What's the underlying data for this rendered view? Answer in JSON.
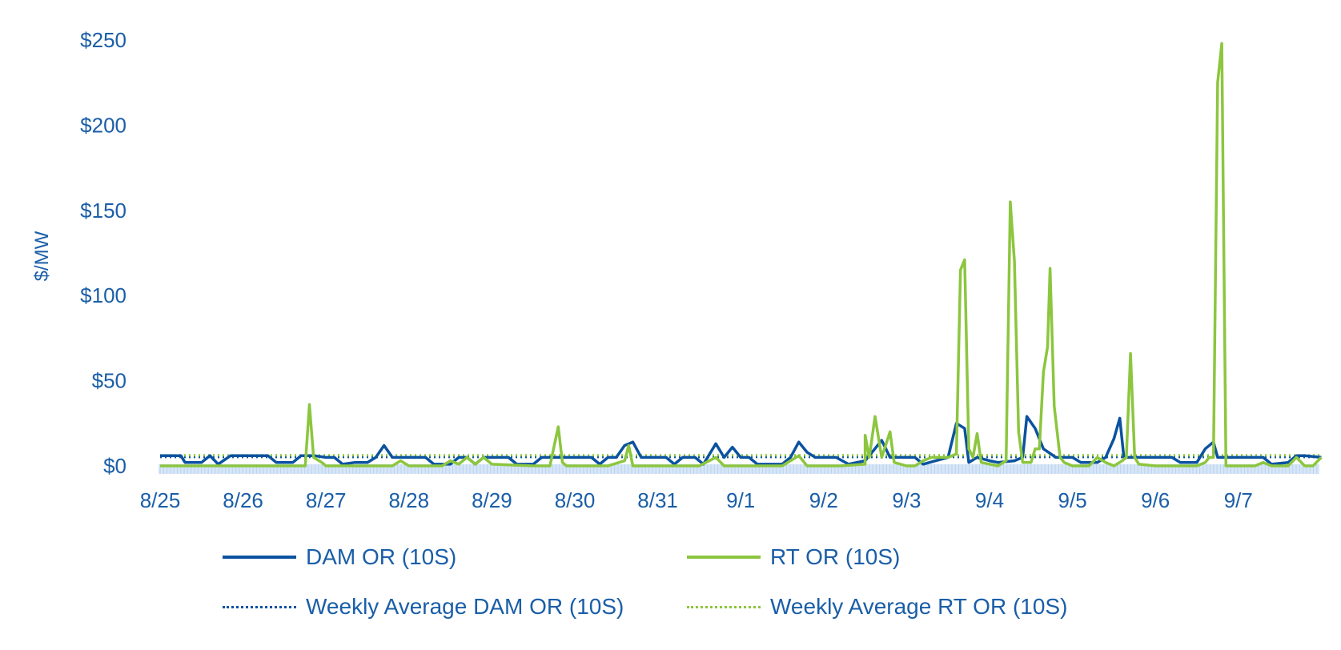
{
  "chart_data": {
    "type": "line",
    "ylabel": "$/MW",
    "ylim": [
      0,
      250
    ],
    "yticks": [
      "$0",
      "$50",
      "$100",
      "$150",
      "$200",
      "$250"
    ],
    "ytick_values": [
      0,
      50,
      100,
      150,
      200,
      250
    ],
    "xticks": [
      "8/25",
      "8/26",
      "8/27",
      "8/28",
      "8/29",
      "8/30",
      "8/31",
      "9/1",
      "9/2",
      "9/3",
      "9/4",
      "9/5",
      "9/6",
      "9/7"
    ],
    "xlim_days": [
      0,
      14.0
    ],
    "grid": false,
    "legend_position": "bottom",
    "series": [
      {
        "name": "DAM OR (10S)",
        "color": "#0b52a0",
        "style": "solid",
        "points": [
          [
            0,
            6
          ],
          [
            0.25,
            6
          ],
          [
            0.3,
            2
          ],
          [
            0.5,
            2
          ],
          [
            0.6,
            6
          ],
          [
            0.7,
            1
          ],
          [
            0.85,
            6
          ],
          [
            1,
            6
          ],
          [
            1.3,
            6
          ],
          [
            1.4,
            2
          ],
          [
            1.6,
            2
          ],
          [
            1.7,
            6
          ],
          [
            1.85,
            6
          ],
          [
            2,
            5
          ],
          [
            2.1,
            5
          ],
          [
            2.2,
            1
          ],
          [
            2.35,
            2
          ],
          [
            2.5,
            2
          ],
          [
            2.6,
            5
          ],
          [
            2.7,
            12
          ],
          [
            2.8,
            5
          ],
          [
            3,
            5
          ],
          [
            3.2,
            5
          ],
          [
            3.3,
            1
          ],
          [
            3.5,
            1
          ],
          [
            3.6,
            5
          ],
          [
            3.7,
            5
          ],
          [
            3.8,
            1
          ],
          [
            3.9,
            5
          ],
          [
            4,
            5
          ],
          [
            4.2,
            5
          ],
          [
            4.3,
            1
          ],
          [
            4.5,
            1
          ],
          [
            4.6,
            5
          ],
          [
            4.8,
            5
          ],
          [
            5,
            5
          ],
          [
            5.2,
            5
          ],
          [
            5.3,
            1
          ],
          [
            5.4,
            5
          ],
          [
            5.5,
            5
          ],
          [
            5.6,
            12
          ],
          [
            5.7,
            14
          ],
          [
            5.8,
            5
          ],
          [
            6,
            5
          ],
          [
            6.1,
            5
          ],
          [
            6.2,
            1
          ],
          [
            6.3,
            5
          ],
          [
            6.45,
            5
          ],
          [
            6.55,
            1
          ],
          [
            6.7,
            13
          ],
          [
            6.8,
            5
          ],
          [
            6.9,
            11
          ],
          [
            7,
            5
          ],
          [
            7.1,
            5
          ],
          [
            7.2,
            1
          ],
          [
            7.35,
            1
          ],
          [
            7.5,
            1
          ],
          [
            7.6,
            5
          ],
          [
            7.7,
            14
          ],
          [
            7.8,
            8
          ],
          [
            7.9,
            5
          ],
          [
            8,
            5
          ],
          [
            8.15,
            5
          ],
          [
            8.3,
            1
          ],
          [
            8.5,
            3
          ],
          [
            8.7,
            15
          ],
          [
            8.8,
            5
          ],
          [
            9,
            5
          ],
          [
            9.1,
            5
          ],
          [
            9.2,
            1
          ],
          [
            9.35,
            3
          ],
          [
            9.5,
            5
          ],
          [
            9.6,
            25
          ],
          [
            9.7,
            22
          ],
          [
            9.75,
            2
          ],
          [
            9.85,
            5
          ],
          [
            10,
            3
          ],
          [
            10.1,
            2
          ],
          [
            10.3,
            3
          ],
          [
            10.4,
            5
          ],
          [
            10.45,
            29
          ],
          [
            10.55,
            22
          ],
          [
            10.65,
            10
          ],
          [
            10.8,
            5
          ],
          [
            11,
            5
          ],
          [
            11.1,
            2
          ],
          [
            11.3,
            2
          ],
          [
            11.4,
            5
          ],
          [
            11.5,
            16
          ],
          [
            11.57,
            28
          ],
          [
            11.62,
            5
          ],
          [
            11.8,
            5
          ],
          [
            12,
            5
          ],
          [
            12.2,
            5
          ],
          [
            12.3,
            2
          ],
          [
            12.5,
            2
          ],
          [
            12.6,
            10
          ],
          [
            12.7,
            14
          ],
          [
            12.75,
            5
          ],
          [
            13,
            5
          ],
          [
            13.1,
            5
          ],
          [
            13.3,
            5
          ],
          [
            13.4,
            1
          ],
          [
            13.6,
            2
          ],
          [
            13.7,
            6
          ],
          [
            13.8,
            6
          ],
          [
            14,
            5
          ]
        ]
      },
      {
        "name": "RT OR (10S)",
        "color": "#8cc63f",
        "style": "solid",
        "points": [
          [
            0,
            0
          ],
          [
            0.5,
            0
          ],
          [
            1,
            0
          ],
          [
            1.5,
            0
          ],
          [
            1.75,
            0
          ],
          [
            1.8,
            36
          ],
          [
            1.85,
            5
          ],
          [
            1.95,
            2
          ],
          [
            2,
            0
          ],
          [
            2.5,
            0
          ],
          [
            2.8,
            0
          ],
          [
            2.9,
            3
          ],
          [
            3,
            0
          ],
          [
            3.4,
            0
          ],
          [
            3.5,
            3
          ],
          [
            3.6,
            1
          ],
          [
            3.7,
            5
          ],
          [
            3.8,
            1
          ],
          [
            3.9,
            5
          ],
          [
            4,
            1
          ],
          [
            4.5,
            0
          ],
          [
            4.7,
            0
          ],
          [
            4.8,
            23
          ],
          [
            4.85,
            2
          ],
          [
            4.9,
            0
          ],
          [
            5.4,
            0
          ],
          [
            5.6,
            3
          ],
          [
            5.65,
            12
          ],
          [
            5.7,
            0
          ],
          [
            6,
            0
          ],
          [
            6.5,
            0
          ],
          [
            6.7,
            5
          ],
          [
            6.8,
            0
          ],
          [
            7.5,
            0
          ],
          [
            7.7,
            6
          ],
          [
            7.8,
            0
          ],
          [
            8.2,
            0
          ],
          [
            8.5,
            1
          ],
          [
            8.5,
            18
          ],
          [
            8.55,
            5
          ],
          [
            8.62,
            29
          ],
          [
            8.7,
            5
          ],
          [
            8.8,
            20
          ],
          [
            8.85,
            2
          ],
          [
            9,
            0
          ],
          [
            9.1,
            0
          ],
          [
            9.2,
            3
          ],
          [
            9.3,
            5
          ],
          [
            9.5,
            5
          ],
          [
            9.6,
            7
          ],
          [
            9.65,
            115
          ],
          [
            9.7,
            121
          ],
          [
            9.75,
            10
          ],
          [
            9.8,
            5
          ],
          [
            9.85,
            19
          ],
          [
            9.9,
            2
          ],
          [
            10.1,
            0
          ],
          [
            10.2,
            3
          ],
          [
            10.25,
            155
          ],
          [
            10.3,
            120
          ],
          [
            10.35,
            20
          ],
          [
            10.4,
            2
          ],
          [
            10.5,
            2
          ],
          [
            10.55,
            10
          ],
          [
            10.6,
            10
          ],
          [
            10.65,
            55
          ],
          [
            10.7,
            70
          ],
          [
            10.73,
            116
          ],
          [
            10.78,
            35
          ],
          [
            10.85,
            5
          ],
          [
            10.9,
            2
          ],
          [
            11,
            0
          ],
          [
            11.2,
            0
          ],
          [
            11.3,
            5
          ],
          [
            11.4,
            2
          ],
          [
            11.5,
            0
          ],
          [
            11.6,
            3
          ],
          [
            11.65,
            5
          ],
          [
            11.7,
            66
          ],
          [
            11.75,
            5
          ],
          [
            11.8,
            1
          ],
          [
            12,
            0
          ],
          [
            12.5,
            0
          ],
          [
            12.6,
            2
          ],
          [
            12.65,
            5
          ],
          [
            12.7,
            5
          ],
          [
            12.75,
            225
          ],
          [
            12.8,
            248
          ],
          [
            12.85,
            0
          ],
          [
            13,
            0
          ],
          [
            13.2,
            0
          ],
          [
            13.3,
            2
          ],
          [
            13.4,
            0
          ],
          [
            13.6,
            0
          ],
          [
            13.7,
            5
          ],
          [
            13.8,
            0
          ],
          [
            13.9,
            0
          ],
          [
            14,
            5
          ]
        ]
      },
      {
        "name": "Weekly Average DAM OR (10S)",
        "color": "#0b52a0",
        "style": "dotted",
        "points": [
          [
            0,
            5.2
          ],
          [
            14,
            5.2
          ]
        ]
      },
      {
        "name": "Weekly Average RT OR (10S)",
        "color": "#8cc63f",
        "style": "dotted",
        "points": [
          [
            0,
            6.2
          ],
          [
            14,
            6.2
          ]
        ]
      }
    ]
  },
  "legend": {
    "dam": "DAM OR (10S)",
    "rt": "RT OR (10S)",
    "weekly_dam": "Weekly Average DAM OR (10S)",
    "weekly_rt": "Weekly Average RT OR (10S)"
  }
}
